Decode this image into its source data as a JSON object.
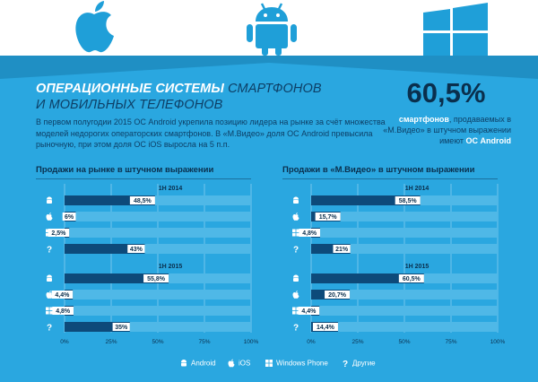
{
  "header": {
    "title_bold": "ОПЕРАЦИОННЫЕ СИСТЕМЫ",
    "title_light_1": "СМАРТФОНОВ",
    "title_light_2": "И МОБИЛЬНЫХ ТЕЛЕФОНОВ",
    "intro": "В первом полугодии 2015 ОС Android укрепила позицию лидера на рынке за счёт множества моделей недорогих операторских смартфонов. В «М.Видео» доля ОС Android превысила рыночную, при этом доля ОС iOS выросла на 5 п.п."
  },
  "highlight": {
    "value": "60,5%",
    "bold": "смартфонов",
    "text_1": ", продаваемых в «М.Видео» в штучном выражении имеют ",
    "bold_2": "ОС Android"
  },
  "colors": {
    "background": "#2aa7e0",
    "bar_fill": "#0d4a7a",
    "bar_track": "#4fb8e7",
    "label_box": "#ffffff",
    "dark_text": "#0a2f4d",
    "accent": "#ffffff"
  },
  "icons": {
    "android": "android-icon",
    "ios": "apple-icon",
    "windows": "windows-icon",
    "other": "question-icon"
  },
  "legend": [
    {
      "icon": "android-icon",
      "label": "Android"
    },
    {
      "icon": "apple-icon",
      "label": "iOS"
    },
    {
      "icon": "windows-icon",
      "label": "Windows Phone"
    },
    {
      "icon": "question-icon",
      "label": "Другие"
    }
  ],
  "chart_data": [
    {
      "type": "bar",
      "orientation": "horizontal",
      "title": "Продажи на рынке в штучном выражении",
      "categories": [
        "Android",
        "iOS",
        "Windows Phone",
        "Другие"
      ],
      "xlim": [
        0,
        100
      ],
      "ticks": [
        "0%",
        "25%",
        "50%",
        "75%",
        "100%"
      ],
      "series": [
        {
          "name": "1H 2014",
          "values": [
            48.5,
            6,
            2.5,
            43
          ],
          "labels": [
            "48,5%",
            "6%",
            "2,5%",
            "43%"
          ]
        },
        {
          "name": "1H 2015",
          "values": [
            55.8,
            4.4,
            4.8,
            35
          ],
          "labels": [
            "55,8%",
            "4,4%",
            "4,8%",
            "35%"
          ]
        }
      ]
    },
    {
      "type": "bar",
      "orientation": "horizontal",
      "title": "Продажи в «М.Видео» в штучном выражении",
      "categories": [
        "Android",
        "iOS",
        "Windows Phone",
        "Другие"
      ],
      "xlim": [
        0,
        100
      ],
      "ticks": [
        "0%",
        "25%",
        "50%",
        "75%",
        "100%"
      ],
      "series": [
        {
          "name": "1H 2014",
          "values": [
            58.5,
            15.7,
            4.8,
            21
          ],
          "labels": [
            "58,5%",
            "15,7%",
            "4,8%",
            "21%"
          ]
        },
        {
          "name": "1H 2015",
          "values": [
            60.5,
            20.7,
            4.4,
            14.4
          ],
          "labels": [
            "60,5%",
            "20,7%",
            "4,4%",
            "14,4%"
          ]
        }
      ]
    }
  ]
}
